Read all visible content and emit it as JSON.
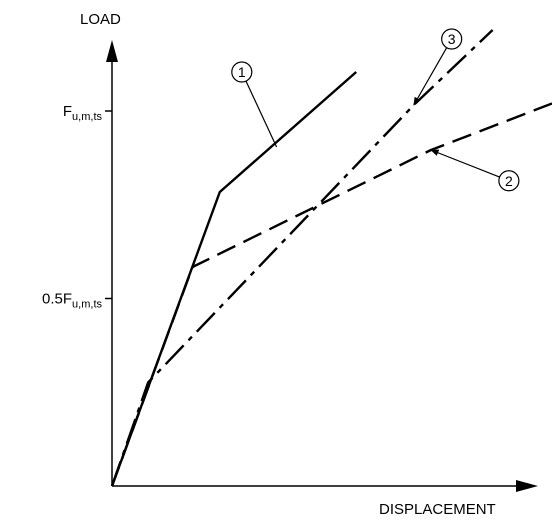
{
  "chart_data": {
    "type": "line",
    "xlabel": "DISPLACEMENT",
    "ylabel": "LOAD",
    "y_ticks": [
      {
        "value": 0.5,
        "label": "0.5F",
        "sub": "u,m,ts"
      },
      {
        "value": 1.0,
        "label": "F",
        "sub": "u,m,ts"
      }
    ],
    "xlim": [
      0,
      1
    ],
    "ylim": [
      0,
      1
    ],
    "grid": false,
    "legend": "none",
    "series": [
      {
        "id": "1",
        "dash": "solid",
        "x": [
          0,
          0.245,
          0.555
        ],
        "y": [
          0,
          0.784,
          1.104
        ]
      },
      {
        "id": "2",
        "dash": "dashed",
        "x": [
          0,
          0.183,
          0.725,
          1.0
        ],
        "y": [
          0,
          0.584,
          0.896,
          1.02
        ]
      },
      {
        "id": "3",
        "dash": "dashdot",
        "x": [
          0,
          0.082,
          0.686,
          0.865
        ],
        "y": [
          0,
          0.276,
          1.016,
          1.216
        ]
      }
    ],
    "callouts": [
      {
        "text": "1",
        "series": "1",
        "circle": [
          0.295,
          1.104
        ],
        "anchor": [
          0.374,
          0.904
        ]
      },
      {
        "text": "2",
        "series": "2",
        "circle": [
          0.902,
          0.814
        ],
        "anchor": [
          0.725,
          0.896
        ]
      },
      {
        "text": "3",
        "series": "3",
        "circle": [
          0.772,
          1.192
        ],
        "anchor": [
          0.686,
          1.016
        ]
      }
    ]
  }
}
